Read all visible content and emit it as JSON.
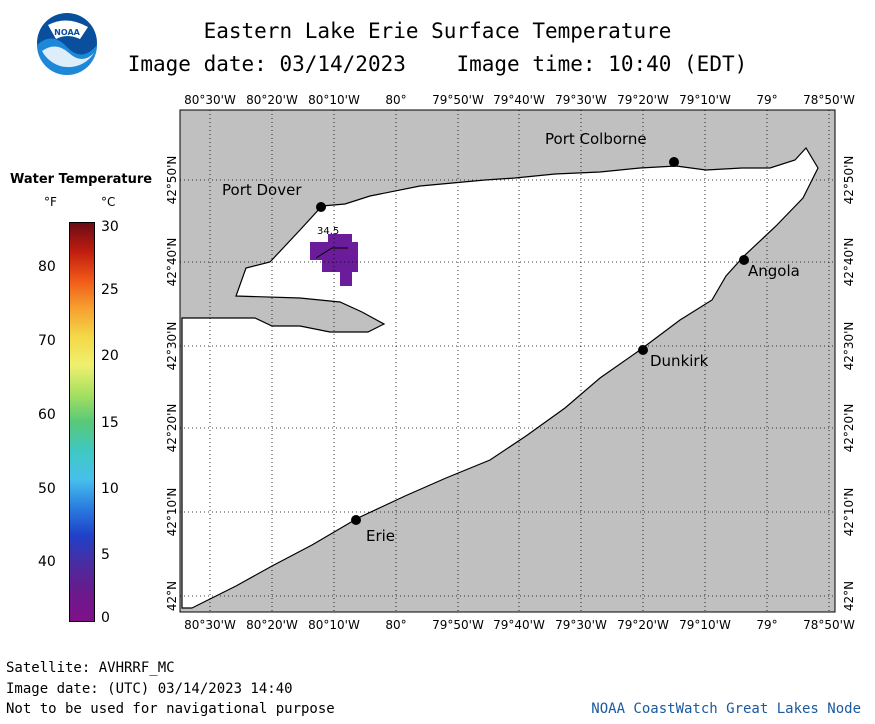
{
  "header": {
    "title": "Eastern Lake Erie Surface Temperature",
    "subtitle": "Image date: 03/14/2023    Image time: 10:40 (EDT)",
    "logo_text": "NOAA"
  },
  "legend": {
    "title": "Water Temperature",
    "unit_f": "°F",
    "unit_c": "°C",
    "f_ticks": [
      "80",
      "70",
      "60",
      "50",
      "40"
    ],
    "c_ticks": [
      "30",
      "25",
      "20",
      "15",
      "10",
      "5",
      "0"
    ],
    "colors": [
      "#6a0c14",
      "#c01c10",
      "#f05818",
      "#f6a030",
      "#f4d848",
      "#f0f070",
      "#a8e060",
      "#58c878",
      "#40c8c0",
      "#48c0ec",
      "#2a7ee0",
      "#2040c8",
      "#4a2ca0",
      "#6a1a8c",
      "#80108a"
    ]
  },
  "map": {
    "lon_labels": [
      "80°30'W",
      "80°20'W",
      "80°10'W",
      "80°",
      "79°50'W",
      "79°40'W",
      "79°30'W",
      "79°20'W",
      "79°10'W",
      "79°",
      "78°50'W"
    ],
    "lat_labels": [
      "42°50'N",
      "42°40'N",
      "42°30'N",
      "42°20'N",
      "42°10'N",
      "42°N"
    ],
    "places": [
      {
        "name": "Port Colborne"
      },
      {
        "name": "Port Dover"
      },
      {
        "name": "Angola"
      },
      {
        "name": "Dunkirk"
      },
      {
        "name": "Erie"
      }
    ],
    "sample_label": "34.5",
    "land_color": "#c0c0c0",
    "water_color": "#ffffff",
    "sample_color": "#6a1c9a"
  },
  "footer": {
    "satellite": "Satellite: AVHRRF_MC",
    "utc_date": "Image date: (UTC) 03/14/2023  14:40",
    "disclaimer": "Not to be used for navigational purpose",
    "credit": "NOAA CoastWatch Great Lakes Node"
  }
}
